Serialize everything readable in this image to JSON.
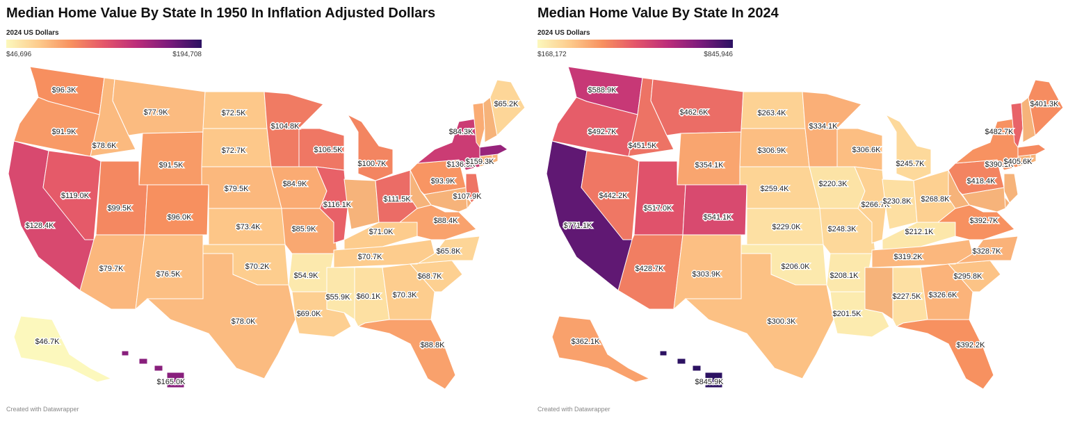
{
  "maps": [
    {
      "title": "Median Home Value By State In 1950 In Inflation Adjusted Dollars",
      "legend": {
        "title": "2024 US Dollars",
        "min_label": "$46,696",
        "max_label": "$194,708",
        "colors": [
          "#fcf8bd",
          "#fdcb8c",
          "#f7905f",
          "#e4566a",
          "#bc2d7a",
          "#7b1b7c",
          "#2c1262"
        ]
      },
      "states": {
        "WA": "$96.3K",
        "OR": "$91.9K",
        "CA": "$128.4K",
        "NV": "$119.0K",
        "ID": "$78.6K",
        "MT": "$77.9K",
        "WY": "$91.5K",
        "UT": "$99.5K",
        "AZ": "$79.7K",
        "CO": "$96.0K",
        "NM": "$76.5K",
        "ND": "$72.5K",
        "SD": "$72.7K",
        "NE": "$79.5K",
        "KS": "$73.4K",
        "OK": "$70.2K",
        "TX": "$78.0K",
        "MN": "$104.8K",
        "IA": "$84.9K",
        "MO": "$85.9K",
        "AR": "$54.9K",
        "LA": "$69.0K",
        "WI": "$106.5K",
        "IL": "$116.1K",
        "MI": "$100.7K",
        "IN": "",
        "OH": "$111.5K",
        "KY": "$71.0K",
        "TN": "$70.7K",
        "MS": "$55.9K",
        "AL": "$60.1K",
        "GA": "$70.3K",
        "FL": "$88.8K",
        "SC": "$68.7K",
        "NC": "$65.8K",
        "VA": "$88.4K",
        "WV": "",
        "PA": "$93.9K",
        "NY": "$136.3K",
        "NJ": "$107.9K",
        "DE": "",
        "MD": "",
        "CT": "",
        "RI": "",
        "MA": "$159.3K",
        "VT": "$84.3K",
        "NH": "",
        "ME": "$65.2K",
        "AK": "$46.7K",
        "HI": "$165.0K"
      },
      "footer": "Created with Datawrapper"
    },
    {
      "title": "Median Home Value By State In 2024",
      "legend": {
        "title": "2024 US Dollars",
        "min_label": "$168,172",
        "max_label": "$845,946",
        "colors": [
          "#fcf8bd",
          "#fdcb8c",
          "#f7905f",
          "#e4566a",
          "#bc2d7a",
          "#7b1b7c",
          "#2c1262"
        ]
      },
      "states": {
        "WA": "$588.9K",
        "OR": "$492.7K",
        "CA": "$771.1K",
        "NV": "$442.2K",
        "ID": "$451.5K",
        "MT": "$462.6K",
        "WY": "$354.1K",
        "UT": "$517.0K",
        "AZ": "$428.7K",
        "CO": "$541.1K",
        "NM": "$303.9K",
        "ND": "$263.4K",
        "SD": "$306.9K",
        "NE": "$259.4K",
        "KS": "$229.0K",
        "OK": "$206.0K",
        "TX": "$300.3K",
        "MN": "$334.1K",
        "IA": "$220.3K",
        "MO": "$248.3K",
        "AR": "$208.1K",
        "LA": "$201.5K",
        "WI": "$306.6K",
        "IL": "$266.7K",
        "MI": "$245.7K",
        "IN": "$230.8K",
        "OH": "$268.8K",
        "KY": "$212.1K",
        "TN": "$319.2K",
        "MS": "",
        "AL": "$227.5K",
        "GA": "$326.6K",
        "FL": "$392.2K",
        "SC": "$295.8K",
        "NC": "$328.7K",
        "VA": "$392.7K",
        "WV": "",
        "PA": "$418.4K",
        "NY": "$390.1K",
        "NJ": "",
        "DE": "",
        "MD": "",
        "CT": "",
        "RI": "",
        "MA": "$405.6K",
        "VT": "$482.7K",
        "NH": "",
        "ME": "$401.3K",
        "AK": "$362.1K",
        "HI": "$845.9K"
      },
      "footer": "Created with Datawrapper"
    }
  ]
}
